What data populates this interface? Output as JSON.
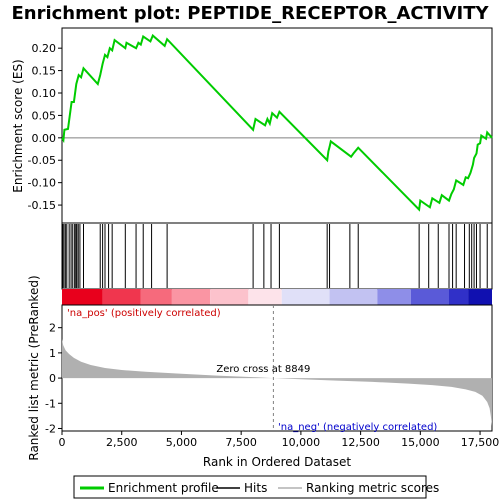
{
  "chart_data": {
    "type": "line",
    "title": "Enrichment plot: PEPTIDE_RECEPTOR_ACTIVITY",
    "x_axis": {
      "label": "Rank in Ordered Dataset",
      "range": [
        0,
        18000
      ],
      "ticks": [
        0,
        2500,
        5000,
        7500,
        10000,
        12500,
        15000,
        17500
      ],
      "tick_labels": [
        "0",
        "2,500",
        "5,000",
        "7,500",
        "10,000",
        "12,500",
        "15,000",
        "17,500"
      ]
    },
    "es_panel": {
      "ylabel": "Enrichment score (ES)",
      "ylim": [
        -0.19,
        0.245
      ],
      "ticks": [
        -0.15,
        -0.1,
        -0.05,
        0.0,
        0.05,
        0.1,
        0.15,
        0.2
      ],
      "tick_labels": [
        "-0.15",
        "-0.10",
        "-0.05",
        "0.00",
        "0.05",
        "0.10",
        "0.15",
        "0.20"
      ],
      "color": "#00cc00",
      "profile": [
        [
          0,
          0.0
        ],
        [
          60,
          -0.005
        ],
        [
          100,
          0.018
        ],
        [
          250,
          0.02
        ],
        [
          300,
          0.04
        ],
        [
          350,
          0.06
        ],
        [
          400,
          0.08
        ],
        [
          500,
          0.08
        ],
        [
          550,
          0.1
        ],
        [
          600,
          0.12
        ],
        [
          700,
          0.14
        ],
        [
          800,
          0.135
        ],
        [
          900,
          0.155
        ],
        [
          1500,
          0.12
        ],
        [
          1600,
          0.14
        ],
        [
          1700,
          0.165
        ],
        [
          1800,
          0.185
        ],
        [
          1900,
          0.18
        ],
        [
          2000,
          0.2
        ],
        [
          2100,
          0.195
        ],
        [
          2200,
          0.218
        ],
        [
          2650,
          0.2
        ],
        [
          2700,
          0.212
        ],
        [
          3100,
          0.2
        ],
        [
          3200,
          0.212
        ],
        [
          3300,
          0.208
        ],
        [
          3400,
          0.226
        ],
        [
          3700,
          0.215
        ],
        [
          3800,
          0.228
        ],
        [
          4300,
          0.205
        ],
        [
          4400,
          0.22
        ],
        [
          8000,
          0.018
        ],
        [
          8100,
          0.042
        ],
        [
          8500,
          0.028
        ],
        [
          8600,
          0.042
        ],
        [
          8700,
          0.032
        ],
        [
          8800,
          0.055
        ],
        [
          9000,
          0.045
        ],
        [
          9100,
          0.058
        ],
        [
          11100,
          -0.05
        ],
        [
          11150,
          -0.03
        ],
        [
          11200,
          -0.02
        ],
        [
          11250,
          -0.008
        ],
        [
          12100,
          -0.042
        ],
        [
          12200,
          -0.035
        ],
        [
          12400,
          -0.022
        ],
        [
          14950,
          -0.16
        ],
        [
          15000,
          -0.14
        ],
        [
          15400,
          -0.155
        ],
        [
          15500,
          -0.135
        ],
        [
          15800,
          -0.145
        ],
        [
          15900,
          -0.128
        ],
        [
          16200,
          -0.14
        ],
        [
          16300,
          -0.125
        ],
        [
          16400,
          -0.115
        ],
        [
          16500,
          -0.095
        ],
        [
          16800,
          -0.105
        ],
        [
          16900,
          -0.088
        ],
        [
          17000,
          -0.09
        ],
        [
          17100,
          -0.078
        ],
        [
          17200,
          -0.06
        ],
        [
          17250,
          -0.045
        ],
        [
          17350,
          -0.035
        ],
        [
          17400,
          -0.015
        ],
        [
          17500,
          -0.012
        ],
        [
          17550,
          0.005
        ],
        [
          17750,
          -0.002
        ],
        [
          17800,
          0.012
        ],
        [
          18000,
          0.0
        ]
      ]
    },
    "hits": [
      30,
      80,
      140,
      200,
      300,
      380,
      450,
      530,
      580,
      620,
      680,
      750,
      900,
      1600,
      1700,
      1800,
      1950,
      2100,
      2650,
      3100,
      3400,
      3750,
      4400,
      8000,
      8450,
      8750,
      9100,
      11100,
      11200,
      12050,
      12400,
      14950,
      15350,
      15750,
      16200,
      16350,
      16500,
      16850,
      17050,
      17150,
      17250,
      17350,
      17500,
      17800
    ],
    "colorbar": {
      "segments": [
        {
          "from": 0,
          "to": 1700,
          "color": "#e8001c"
        },
        {
          "from": 1700,
          "to": 3300,
          "color": "#f0364e"
        },
        {
          "from": 3300,
          "to": 4600,
          "color": "#f66a7c"
        },
        {
          "from": 4600,
          "to": 6200,
          "color": "#fa95a3"
        },
        {
          "from": 6200,
          "to": 7800,
          "color": "#fcc2cc"
        },
        {
          "from": 7800,
          "to": 9200,
          "color": "#fde3ea"
        },
        {
          "from": 9200,
          "to": 11200,
          "color": "#e0e0f8"
        },
        {
          "from": 11200,
          "to": 13200,
          "color": "#c2c2f2"
        },
        {
          "from": 13200,
          "to": 14600,
          "color": "#8e8ee8"
        },
        {
          "from": 14600,
          "to": 16200,
          "color": "#5a5ad8"
        },
        {
          "from": 16200,
          "to": 17000,
          "color": "#3030c8"
        },
        {
          "from": 17000,
          "to": 18000,
          "color": "#1010b0"
        }
      ]
    },
    "metric_panel": {
      "ylabel": "Ranked list metric (PreRanked)",
      "ylim": [
        -2.1,
        2.9
      ],
      "ticks": [
        -2,
        -1,
        0,
        1,
        2
      ],
      "tick_labels": [
        "-2",
        "-1",
        "0",
        "1",
        "2"
      ],
      "fill_color": "#b0b0b0",
      "curve": [
        [
          0,
          1.55
        ],
        [
          50,
          1.3
        ],
        [
          150,
          1.1
        ],
        [
          300,
          0.95
        ],
        [
          500,
          0.8
        ],
        [
          800,
          0.65
        ],
        [
          1200,
          0.52
        ],
        [
          1800,
          0.4
        ],
        [
          2500,
          0.32
        ],
        [
          3500,
          0.25
        ],
        [
          5000,
          0.17
        ],
        [
          6500,
          0.1
        ],
        [
          8000,
          0.04
        ],
        [
          8849,
          0.0
        ],
        [
          10000,
          -0.05
        ],
        [
          11500,
          -0.1
        ],
        [
          13000,
          -0.15
        ],
        [
          14500,
          -0.22
        ],
        [
          15500,
          -0.28
        ],
        [
          16300,
          -0.35
        ],
        [
          16900,
          -0.45
        ],
        [
          17300,
          -0.55
        ],
        [
          17600,
          -0.7
        ],
        [
          17800,
          -0.95
        ],
        [
          17900,
          -1.2
        ],
        [
          17950,
          -1.5
        ],
        [
          18000,
          -1.9
        ]
      ],
      "zero_cross": 8849,
      "zero_cross_label": "Zero cross at 8849",
      "pos_label": "'na_pos' (positively correlated)",
      "neg_label": "'na_neg' (negatively correlated)",
      "pos_color": "#cc0000",
      "neg_color": "#0000cc"
    },
    "legend": {
      "placement": "bottom",
      "items": [
        {
          "label": "Enrichment profile",
          "color": "#00cc00"
        },
        {
          "label": "Hits",
          "color": "#000000"
        },
        {
          "label": "Ranking metric scores",
          "color": "#b0b0b0"
        }
      ]
    }
  }
}
